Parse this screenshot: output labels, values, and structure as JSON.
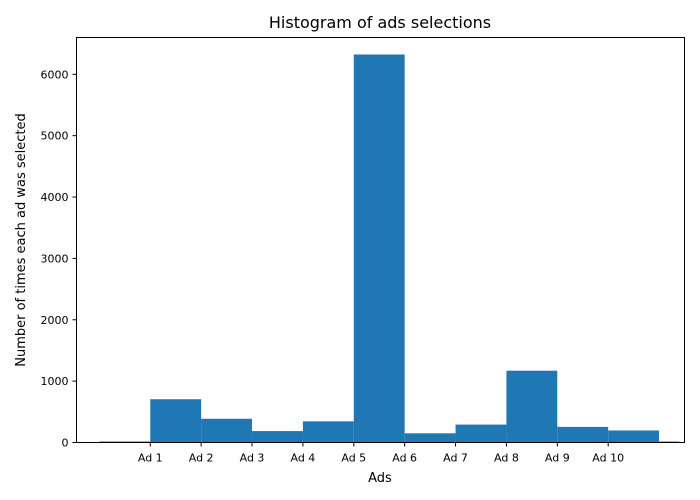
{
  "chart_data": {
    "type": "bar",
    "title": "Histogram of ads selections",
    "xlabel": "Ads",
    "ylabel": "Number of times each ad was selected",
    "ylim": [
      0,
      6600
    ],
    "yticks": [
      0,
      1000,
      2000,
      3000,
      4000,
      5000,
      6000
    ],
    "yticklabels": [
      "0",
      "1000",
      "2000",
      "3000",
      "4000",
      "5000",
      "6000"
    ],
    "xticklabels": [
      "Ad 1",
      "Ad 2",
      "Ad 3",
      "Ad 4",
      "Ad 5",
      "Ad 6",
      "Ad 7",
      "Ad 8",
      "Ad 9",
      "Ad 10"
    ],
    "bins": [
      {
        "range": [
          -0.5,
          0.5
        ],
        "value": 0
      },
      {
        "range": [
          0.5,
          1.5
        ],
        "value": 705
      },
      {
        "range": [
          1.5,
          2.5
        ],
        "value": 387
      },
      {
        "range": [
          2.5,
          3.5
        ],
        "value": 186
      },
      {
        "range": [
          3.5,
          4.5
        ],
        "value": 345
      },
      {
        "range": [
          4.5,
          5.5
        ],
        "value": 6323
      },
      {
        "range": [
          5.5,
          6.5
        ],
        "value": 150
      },
      {
        "range": [
          6.5,
          7.5
        ],
        "value": 292
      },
      {
        "range": [
          7.5,
          8.5
        ],
        "value": 1170
      },
      {
        "range": [
          8.5,
          9.5
        ],
        "value": 254
      },
      {
        "range": [
          9.5,
          10.5
        ],
        "value": 196
      },
      {
        "range": [
          10.5,
          10.9
        ],
        "value": 0
      }
    ],
    "bar_color": "#1f77b4",
    "grid": false,
    "legend": "none"
  }
}
